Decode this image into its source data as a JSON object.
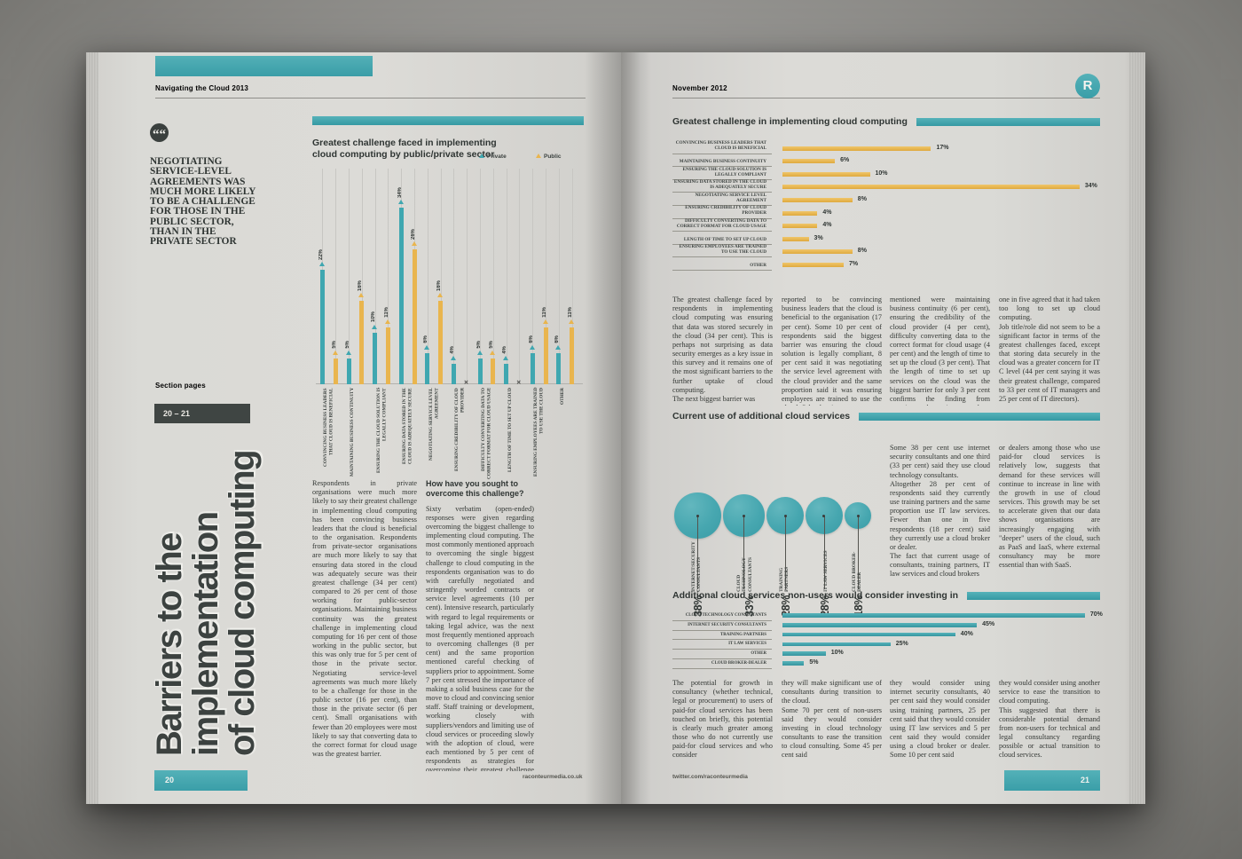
{
  "colors": {
    "teal": "#3fa7b0",
    "yellow": "#e9b54e",
    "dark": "#3a403e",
    "page": "#d8d7d3"
  },
  "left_page": {
    "header": "Navigating the Cloud 2013",
    "quote_icon": "““",
    "quote": "Negotiating service-level agreements was much more likely to be a challenge for those in the public sector, than in the private sector",
    "section_pages_label": "Section pages",
    "section_pages_range": "20 – 21",
    "big_title": "Barriers to the\nimplementation\nof cloud computing",
    "column1_text": "Respondents in private organisations were much more likely to say their greatest challenge in implementing cloud computing has been convincing business leaders that the cloud is beneficial to the organisation. Respondents from private-sector organisations are much more likely to say that ensuring data stored in the cloud was adequately secure was their greatest challenge (34 per cent) compared to 26 per cent of those working for public-sector organisations. Maintaining business continuity was the greatest challenge in implementing cloud computing for 16 per cent of those working in the public sector, but this was only true for 5 per cent of those in the private sector. Negotiating service-level agreements was much more likely to be a challenge for those in the public sector (16 per cent), than those in the private sector (6 per cent). Small organisations with fewer than 20 employees were most likely to say that converting data to the correct format for cloud usage was the greatest barrier.",
    "column2_heading": "How have you sought to\novercome this challenge?",
    "column2_text": "Sixty verbatim (open-ended) responses were given regarding overcoming the biggest challenge to implementing cloud computing. The most commonly mentioned approach to overcoming the single biggest challenge to cloud computing in the respondents organisation was to do with carefully negotiated and stringently worded contracts or service level agreements (10 per cent). Intensive research, particularly with regard to legal requirements or taking legal advice, was the next most frequently mentioned approach to overcoming challenges (8 per cent) and the same proportion mentioned careful checking of suppliers prior to appointment. Some 7 per cent stressed the importance of making a solid business case for the move to cloud and convincing senior staff. Staff training or development, working closely with suppliers/vendors and limiting use of cloud services or proceeding slowly with the adoption of cloud, were each mentioned by 5 per cent of respondents as strategies for overcoming their greatest challenge in implementing cloud computing",
    "footer_url": "raconteurmedia.co.uk",
    "page_number": "20"
  },
  "right_page": {
    "header": "November 2012",
    "logo_letter": "R",
    "section1_cols": [
      "The greatest challenge faced by respondents in implementing cloud computing was ensuring that data was stored securely in the cloud (34 per cent). This is perhaps not surprising as data security emerges as a key issue in this survey and it remains one of the most significant barriers to the further uptake of cloud computing.\nThe next biggest barrier was",
      "reported to be convincing business leaders that the cloud is beneficial to the organisation (17 per cent). Some 10 per cent of respondents said the biggest barrier was ensuring the cloud solution is legally compliant, 8 per cent said it was negotiating the service level agreement with the cloud provider and the same proportion said it was ensuring employees are trained to use the cloud. Other barriers",
      "mentioned were maintaining business continuity (6 per cent), ensuring the credibility of the cloud provider (4 per cent), difficulty converting data to the correct format for cloud usage (4 per cent) and the length of time to set up the cloud (3 per cent). That the length of time to set up services on the cloud was the biggest barrier for only 3 per cent confirms the finding from questions about impact where only",
      "one in five agreed that it had taken too long to set up cloud computing.\nJob title/role did not seem to be a significant factor in terms of the greatest challenges faced, except that storing data securely in the cloud was a greater concern for IT C level (44 per cent saying it was their greatest challenge, compared to 33 per cent of IT managers and 25 per cent of IT directors).",
      "Some 38 per cent use internet security consultants and one third (33 per cent) said they use cloud technology consultants.\nAltogether 28 per cent of respondents said they currently use training partners and the same proportion use IT law services. Fewer than one in five respondents (18 per cent) said they currently use a cloud broker or dealer.\nThe fact that current usage of consultants, training partners, IT law services and cloud brokers",
      "or dealers among those who use paid-for cloud services is relatively low, suggests that demand for these services will continue to increase in line with the growth in use of cloud services. This growth may be set to accelerate given that our data shows organisations are increasingly engaging with \"deeper\" users of the cloud, such as PaaS and IaaS, where external consultancy may be more essential than with SaaS.",
      "The potential for growth in consultancy (whether technical, legal or procurement) to users of paid-for cloud services has been touched on briefly, this potential is clearly much greater among those who do not currently use paid-for cloud services and who consider",
      "they will make significant use of consultants during transition to the cloud.\nSome 70 per cent of non-users said they would consider investing in cloud technology consultants to ease the transition to cloud consulting. Some 45 per cent said",
      "they would consider using internet security consultants, 40 per cent said they would consider using training partners, 25 per cent said that they would consider using IT law services and 5 per cent said they would consider using a cloud broker or dealer. Some 10 per cent said",
      "they would consider using another service to ease the transition to cloud computing.\nThis suggested that there is considerable potential demand from non-users for technical and legal consultancy regarding possible or actual transition to cloud services."
    ],
    "footer_url": "twitter.com/raconteurmedia",
    "page_number": "21"
  },
  "chart_data": [
    {
      "id": "sector-grouped-bar",
      "type": "bar",
      "orientation": "vertical",
      "unit": "%",
      "title": "Greatest challenge faced in implementing cloud computing by public/private sector",
      "legend_position": "top-right",
      "grid": "vertical-lines",
      "missing_marker": "✕",
      "categories": [
        "CONVINCING BUSINESS LEADERS THAT CLOUD IS BENEFICIAL",
        "MAINTAINING BUSINESS CONTINUITY",
        "ENSURING THE CLOUD SOLUTION IS LEGALLY COMPLIANT",
        "ENSURING DATA STORED IN THE CLOUD IS ADEQUATELY SECURE",
        "NEGOTIATING SERVICE LEVEL AGREEMENT",
        "ENSURING CREDIBILITY OF CLOUD PROVIDER",
        "DIFFICULTY CONVERTING DATA TO CORRECT FORMAT FOR CLOUD USAGE",
        "LENGTH OF TIME TO SET UP CLOUD",
        "ENSURING EMPLOYEES ARE TRAINED TO USE THE CLOUD",
        "OTHER"
      ],
      "series": [
        {
          "name": "Private",
          "color": "#3fa7b0",
          "values": [
            22,
            5,
            10,
            34,
            6,
            4,
            5,
            4,
            6,
            6
          ]
        },
        {
          "name": "Public",
          "color": "#e9b54e",
          "values": [
            5,
            16,
            11,
            26,
            16,
            null,
            5,
            null,
            11,
            11
          ]
        }
      ]
    },
    {
      "id": "overall-hbar",
      "type": "bar",
      "orientation": "horizontal",
      "unit": "%",
      "xlim": [
        0,
        34
      ],
      "title": "Greatest challenge in implementing cloud computing",
      "color": "#e9b54e",
      "categories": [
        "CONVINCING BUSINESS LEADERS THAT CLOUD IS BENEFICIAL",
        "MAINTAINING BUSINESS CONTINUITY",
        "ENSURING THE CLOUD SOLUTION IS LEGALLY COMPLIANT",
        "ENSURING DATA STORED IN THE CLOUD IS ADEQUATELY SECURE",
        "NEGOTIATING SERVICE LEVEL AGREEMENT",
        "ENSURING CREDIBILITY OF CLOUD PROVIDER",
        "DIFFICULTY CONVERTING DATA TO CORRECT FORMAT FOR CLOUD USAGE",
        "LENGTH OF TIME TO SET UP CLOUD",
        "ENSURING EMPLOYEES ARE TRAINED TO USE THE CLOUD",
        "OTHER"
      ],
      "values": [
        17,
        6,
        10,
        34,
        8,
        4,
        4,
        3,
        8,
        7
      ]
    },
    {
      "id": "current-use-bubbles",
      "type": "bubble",
      "unit": "%",
      "color": "#47a7b0",
      "title": "Current use of additional cloud services",
      "categories": [
        "INTERNET/SECURITY CONSULTANTS",
        "CLOUD TECHNOLOGY CONSULTANTS",
        "TRAINING PARTNERS",
        "IT LAW SERVICES",
        "CLOUD BROKER-DEALER"
      ],
      "values": [
        38,
        33,
        28,
        28,
        18
      ]
    },
    {
      "id": "consider-invest-hbar",
      "type": "bar",
      "orientation": "horizontal",
      "unit": "%",
      "xlim": [
        0,
        70
      ],
      "title": "Additional cloud services non-users would consider investing in",
      "color": "#3fa7b0",
      "categories": [
        "CLOUD TECHNOLOGY CONSULTANTS",
        "INTERNET SECURITY CONSULTANTS",
        "TRAINING PARTNERS",
        "IT LAW SERVICES",
        "OTHER",
        "CLOUD BROKER-DEALER"
      ],
      "values": [
        70,
        45,
        40,
        25,
        10,
        5
      ]
    }
  ]
}
